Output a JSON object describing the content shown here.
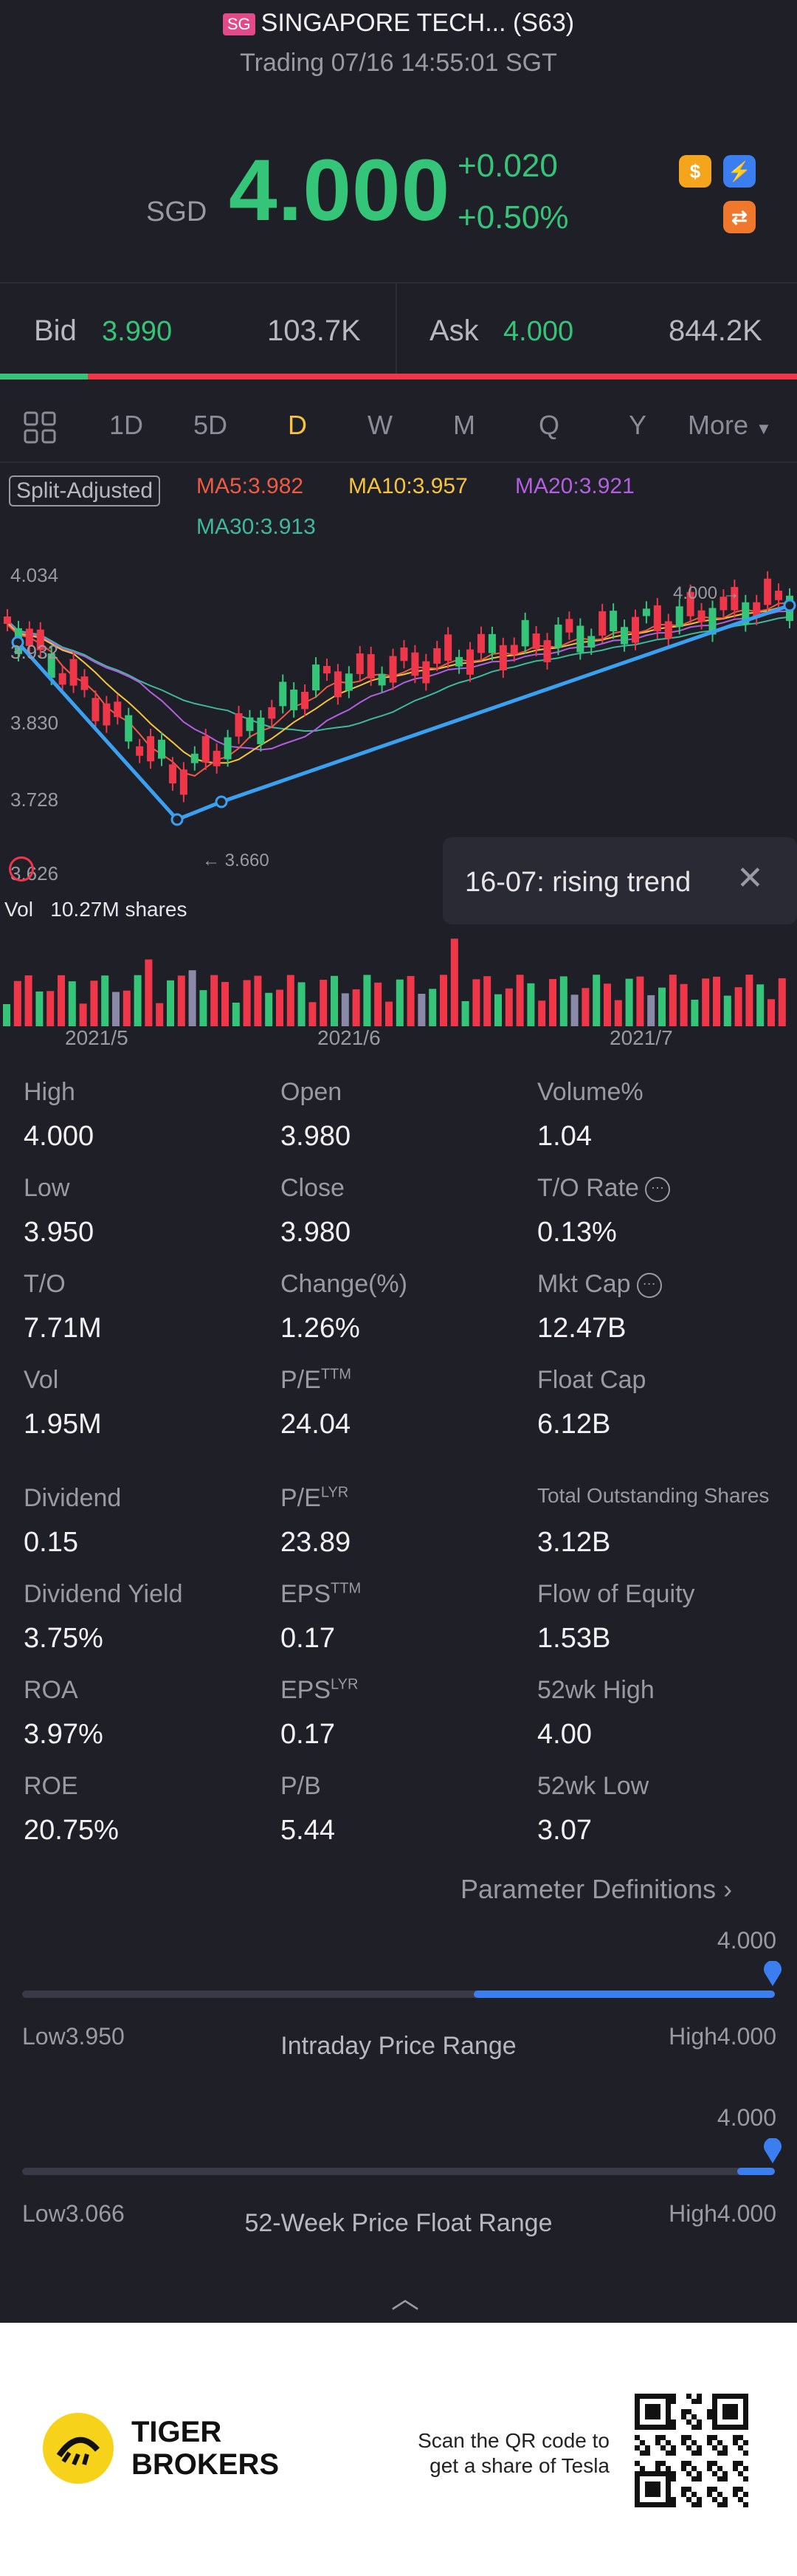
{
  "header": {
    "badge": "SG",
    "title": "SINGAPORE TECH... (S63)",
    "subtitle": "Trading 07/16 14:55:01 SGT"
  },
  "quote": {
    "currency": "SGD",
    "price": "4.000",
    "change": "+0.020",
    "change_pct": "+0.50%",
    "icons": [
      "dollar-icon",
      "flash-icon",
      "swap-icon"
    ]
  },
  "bid_ask": {
    "bid_label": "Bid",
    "bid_price": "3.990",
    "bid_volume": "103.7K",
    "ask_label": "Ask",
    "ask_price": "4.000",
    "ask_volume": "844.2K",
    "bid_share_pct": 11
  },
  "tabs": {
    "items": [
      "1D",
      "5D",
      "D",
      "W",
      "M",
      "Q",
      "Y"
    ],
    "more": "More",
    "active": "D"
  },
  "chart_labels": {
    "split_adjusted": "Split-Adjusted",
    "ma5": "MA5:3.982",
    "ma10": "MA10:3.957",
    "ma20": "MA20:3.921",
    "ma30": "MA30:3.913",
    "y_top": "4.034",
    "y_mid": "3.830",
    "y_low": "3.728",
    "y_bottom": "3.626",
    "y_cut": "3.932",
    "high_marker": "4.000",
    "low_marker": "3.660",
    "vol_label": "Vol",
    "vol_value": "10.27M shares",
    "x_labels": [
      "2021/5",
      "2021/6",
      "2021/7"
    ],
    "tooltip": "16-07: rising trend"
  },
  "colors": {
    "up": "#35c579",
    "down": "#f0374a",
    "ma5": "#ef5a43",
    "ma10": "#f6c33a",
    "ma20": "#b25fe0",
    "ma30": "#3fb89c",
    "trend": "#3aa0f0"
  },
  "stats": [
    [
      {
        "label": "High",
        "value": "4.000"
      },
      {
        "label": "Open",
        "value": "3.980"
      },
      {
        "label": "Volume%",
        "value": "1.04"
      }
    ],
    [
      {
        "label": "Low",
        "value": "3.950"
      },
      {
        "label": "Close",
        "value": "3.980"
      },
      {
        "label": "T/O Rate",
        "value": "0.13%"
      }
    ],
    [
      {
        "label": "T/O",
        "value": "7.71M"
      },
      {
        "label": "Change(%)",
        "value": "1.26%"
      },
      {
        "label": "Mkt Cap",
        "value": "12.47B"
      }
    ],
    [
      {
        "label": "Vol",
        "value": "1.95M"
      },
      {
        "label": "P/E",
        "sup": "TTM",
        "value": "24.04"
      },
      {
        "label": "Float Cap",
        "value": "6.12B"
      }
    ],
    [
      {
        "label": "Dividend",
        "value": "0.15"
      },
      {
        "label": "P/E",
        "sup": "LYR",
        "value": "23.89"
      },
      {
        "label": "Total Outstanding Shares",
        "value": "3.12B"
      }
    ],
    [
      {
        "label": "Dividend Yield",
        "value": "3.75%"
      },
      {
        "label": "EPS",
        "sup": "TTM",
        "value": "0.17"
      },
      {
        "label": "Flow of Equity",
        "value": "1.53B"
      }
    ],
    [
      {
        "label": "ROA",
        "value": "3.97%"
      },
      {
        "label": "EPS",
        "sup": "LYR",
        "value": "0.17"
      },
      {
        "label": "52wk High",
        "value": "4.00"
      }
    ],
    [
      {
        "label": "ROE",
        "value": "20.75%"
      },
      {
        "label": "P/B",
        "value": "5.44"
      },
      {
        "label": "52wk Low",
        "value": "3.07"
      }
    ]
  ],
  "param_link": "Parameter Definitions",
  "ranges": [
    {
      "current": "4.000",
      "low": "Low3.950",
      "high": "High4.000",
      "title": "Intraday Price Range",
      "fill_from": 0.6,
      "fill_to": 1.0
    },
    {
      "current": "4.000",
      "low": "Low3.066",
      "high": "High4.000",
      "title": "52-Week Price Float Range",
      "fill_from": 0.95,
      "fill_to": 1.0
    }
  ],
  "footer": {
    "brand_line1": "TIGER",
    "brand_line2": "BROKERS",
    "qr_text1": "Scan the QR code to",
    "qr_text2": "get a share of Tesla"
  }
}
